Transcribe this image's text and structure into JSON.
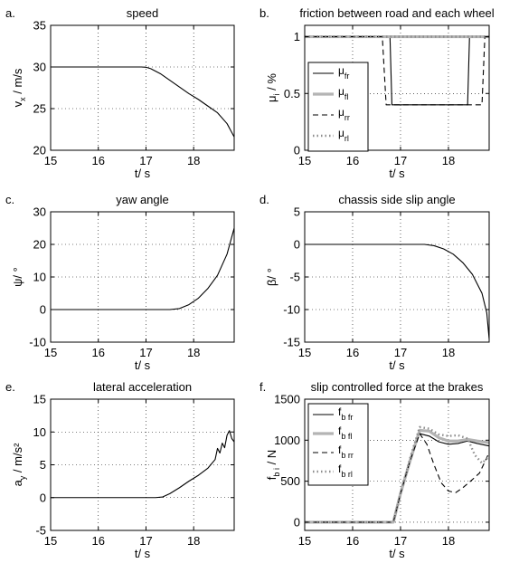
{
  "chart_data": [
    {
      "panel": "a.",
      "type": "line",
      "title": "speed",
      "xlabel": "t/ s",
      "ylabel": "v_x / m/s",
      "ylabel_main": "v",
      "ylabel_sub": "x",
      "ylabel_rest": " / m/s",
      "xlim": [
        15,
        18.85
      ],
      "ylim": [
        20,
        35
      ],
      "xticks": [
        15,
        16,
        17,
        18
      ],
      "yticks": [
        20,
        25,
        30,
        35
      ],
      "grid": true,
      "series": [
        {
          "style": "solid",
          "x": [
            15,
            16.9,
            17.0,
            17.1,
            17.3,
            17.5,
            17.7,
            17.9,
            18.1,
            18.3,
            18.5,
            18.7,
            18.85
          ],
          "y": [
            30,
            30,
            29.97,
            29.8,
            29.2,
            28.4,
            27.6,
            26.8,
            26.1,
            25.3,
            24.5,
            23.2,
            21.6
          ]
        }
      ]
    },
    {
      "panel": "b.",
      "type": "line",
      "title": "friction between road and each wheel",
      "xlabel": "t/ s",
      "ylabel": "μ_i / %",
      "ylabel_main": "μ",
      "ylabel_sub": "i",
      "ylabel_rest": " / %",
      "xlim": [
        15,
        18.85
      ],
      "ylim": [
        0,
        1.1
      ],
      "xticks": [
        15,
        16,
        17,
        18
      ],
      "yticks": [
        0,
        0.5,
        1
      ],
      "grid": true,
      "legend_position": "left",
      "series": [
        {
          "name": "fr",
          "style": "solid",
          "x": [
            15,
            16.78,
            16.82,
            18.4,
            18.44,
            18.85
          ],
          "y": [
            1,
            1,
            0.4,
            0.4,
            1,
            1
          ]
        },
        {
          "name": "fl",
          "style": "thick",
          "x": [
            15,
            18.85
          ],
          "y": [
            1,
            1
          ]
        },
        {
          "name": "rr",
          "style": "dashed",
          "x": [
            15,
            16.62,
            16.7,
            18.7,
            18.76,
            18.85
          ],
          "y": [
            1,
            1,
            0.4,
            0.4,
            1,
            1
          ]
        },
        {
          "name": "rl",
          "style": "dotted",
          "x": [
            15,
            18.85
          ],
          "y": [
            1,
            1
          ]
        }
      ]
    },
    {
      "panel": "c.",
      "type": "line",
      "title": "yaw angle",
      "xlabel": "t/ s",
      "ylabel": "ψ/ °",
      "ylabel_main": "ψ/ °",
      "ylabel_sub": "",
      "ylabel_rest": "",
      "xlim": [
        15,
        18.85
      ],
      "ylim": [
        -10,
        30
      ],
      "xticks": [
        15,
        16,
        17,
        18
      ],
      "yticks": [
        -10,
        0,
        10,
        20,
        30
      ],
      "grid": true,
      "series": [
        {
          "style": "solid",
          "x": [
            15,
            17.5,
            17.7,
            17.9,
            18.1,
            18.3,
            18.5,
            18.7,
            18.85
          ],
          "y": [
            0,
            0,
            0.3,
            1.5,
            3.5,
            6.5,
            10.5,
            17,
            25
          ]
        }
      ]
    },
    {
      "panel": "d.",
      "type": "line",
      "title": "chassis side slip angle",
      "xlabel": "t/ s",
      "ylabel": "β/ °",
      "ylabel_main": "β/ °",
      "ylabel_sub": "",
      "ylabel_rest": "",
      "xlim": [
        15,
        18.85
      ],
      "ylim": [
        -15,
        5
      ],
      "xticks": [
        15,
        16,
        17,
        18
      ],
      "yticks": [
        -15,
        -10,
        -5,
        0,
        5
      ],
      "grid": true,
      "series": [
        {
          "style": "solid",
          "x": [
            15,
            17.5,
            17.7,
            17.9,
            18.1,
            18.3,
            18.5,
            18.7,
            18.8,
            18.85
          ],
          "y": [
            0,
            0,
            -0.2,
            -0.7,
            -1.5,
            -2.8,
            -4.6,
            -7.5,
            -10.5,
            -14.5
          ]
        }
      ]
    },
    {
      "panel": "e.",
      "type": "line",
      "title": "lateral acceleration",
      "xlabel": "t/ s",
      "ylabel": "a_y / m/s²",
      "ylabel_main": "a",
      "ylabel_sub": "y",
      "ylabel_rest": " / m/s²",
      "xlim": [
        15,
        18.85
      ],
      "ylim": [
        -5,
        15
      ],
      "xticks": [
        15,
        16,
        17,
        18
      ],
      "yticks": [
        -5,
        0,
        5,
        10,
        15
      ],
      "grid": true,
      "series": [
        {
          "style": "solid",
          "x": [
            15,
            17.2,
            17.35,
            17.5,
            17.7,
            17.9,
            18.1,
            18.3,
            18.45,
            18.5,
            18.55,
            18.6,
            18.65,
            18.7,
            18.75,
            18.8,
            18.85
          ],
          "y": [
            0,
            0,
            0.1,
            0.6,
            1.5,
            2.5,
            3.4,
            4.5,
            5.8,
            7.5,
            6.8,
            8.3,
            7.6,
            9.5,
            10.2,
            9.0,
            8.5
          ]
        }
      ]
    },
    {
      "panel": "f.",
      "type": "line",
      "title": "slip controlled force at the brakes",
      "xlabel": "t/ s",
      "ylabel": "f_b_i / N",
      "ylabel_main": "f",
      "ylabel_sub": "b i",
      "ylabel_rest": " / N",
      "xlim": [
        15,
        18.85
      ],
      "ylim": [
        -100,
        1500
      ],
      "xticks": [
        15,
        16,
        17,
        18
      ],
      "yticks": [
        0,
        500,
        1000,
        1500
      ],
      "grid": true,
      "legend_position": "left",
      "series": [
        {
          "name": "b fr",
          "style": "solid",
          "x": [
            15,
            16.85,
            17.0,
            17.2,
            17.4,
            17.6,
            17.8,
            18.0,
            18.2,
            18.4,
            18.6,
            18.85
          ],
          "y": [
            0,
            0,
            350,
            750,
            1080,
            1050,
            980,
            950,
            960,
            990,
            960,
            930
          ]
        },
        {
          "name": "b fl",
          "style": "thick",
          "x": [
            15,
            16.85,
            17.0,
            17.2,
            17.4,
            17.6,
            17.8,
            18.0,
            18.2,
            18.4,
            18.6,
            18.85
          ],
          "y": [
            0,
            0,
            350,
            750,
            1120,
            1110,
            1030,
            990,
            990,
            1010,
            990,
            970
          ]
        },
        {
          "name": "b rr",
          "style": "dashed",
          "x": [
            15,
            16.85,
            17.0,
            17.2,
            17.4,
            17.55,
            17.7,
            17.85,
            18.0,
            18.15,
            18.3,
            18.5,
            18.65,
            18.85
          ],
          "y": [
            0,
            0,
            350,
            750,
            1080,
            950,
            700,
            480,
            380,
            360,
            420,
            520,
            600,
            850
          ]
        },
        {
          "name": "b rl",
          "style": "dotted",
          "x": [
            15,
            16.85,
            17.0,
            17.2,
            17.4,
            17.6,
            17.8,
            18.0,
            18.2,
            18.4,
            18.55,
            18.7,
            18.85
          ],
          "y": [
            0,
            0,
            350,
            780,
            1160,
            1140,
            1070,
            1050,
            1060,
            1020,
            820,
            720,
            800
          ]
        }
      ]
    }
  ]
}
